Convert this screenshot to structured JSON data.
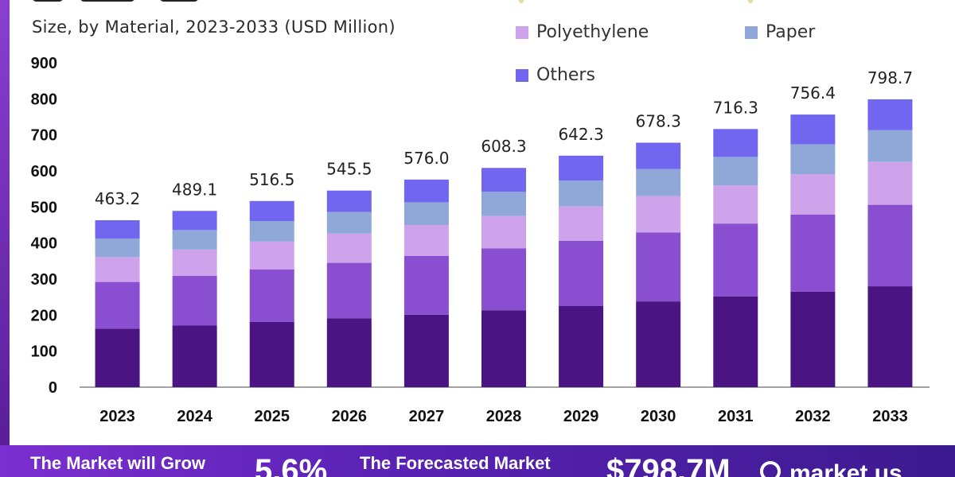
{
  "subtitle": "Size, by Material, 2023-2033 (USD Million)",
  "legend": [
    {
      "label": "Polyethylene",
      "color": "#cfa2ec"
    },
    {
      "label": "Paper",
      "color": "#8fa8d8"
    },
    {
      "label": "Others",
      "color": "#7066f0"
    }
  ],
  "banner": {
    "grow_text": "The Market will Grow",
    "cagr": "5.6%",
    "forecast_text": "The Forecasted Market",
    "forecast_value": "$798.7M",
    "brand": "market.us"
  },
  "chart_data": {
    "type": "bar",
    "stacked": true,
    "categories": [
      "2023",
      "2024",
      "2025",
      "2026",
      "2027",
      "2028",
      "2029",
      "2030",
      "2031",
      "2032",
      "2033"
    ],
    "totals": [
      463.2,
      489.1,
      516.5,
      545.5,
      576.0,
      608.3,
      642.3,
      678.3,
      716.3,
      756.4,
      798.7
    ],
    "total_labels": [
      "463.2",
      "489.1",
      "516.5",
      "545.5",
      "576.0",
      "608.3",
      "642.3",
      "678.3",
      "716.3",
      "756.4",
      "798.7"
    ],
    "series": [
      {
        "color": "#4a1582",
        "values": [
          162,
          171,
          181,
          191,
          201,
          213,
          225,
          238,
          252,
          265,
          280
        ]
      },
      {
        "color": "#8a4fd0",
        "values": [
          130,
          138,
          146,
          154,
          163,
          172,
          181,
          191,
          202,
          214,
          226
        ]
      },
      {
        "name": "Polyethylene",
        "color": "#cfa2ec",
        "values": [
          69,
          73,
          77,
          81,
          86,
          90,
          96,
          101,
          106,
          112,
          119
        ]
      },
      {
        "name": "Paper",
        "color": "#8fa8d8",
        "values": [
          51,
          54,
          57,
          60,
          63,
          67,
          71,
          75,
          79,
          83,
          88
        ]
      },
      {
        "name": "Others",
        "color": "#7066f0",
        "values": [
          51.2,
          53.1,
          55.5,
          59.5,
          63.0,
          66.3,
          69.3,
          73.3,
          77.3,
          82.4,
          85.7
        ]
      }
    ],
    "ylim": [
      0,
      900
    ],
    "yticks": [
      0,
      100,
      200,
      300,
      400,
      500,
      600,
      700,
      800,
      900
    ],
    "grid": false,
    "legend_position": "top-right"
  }
}
